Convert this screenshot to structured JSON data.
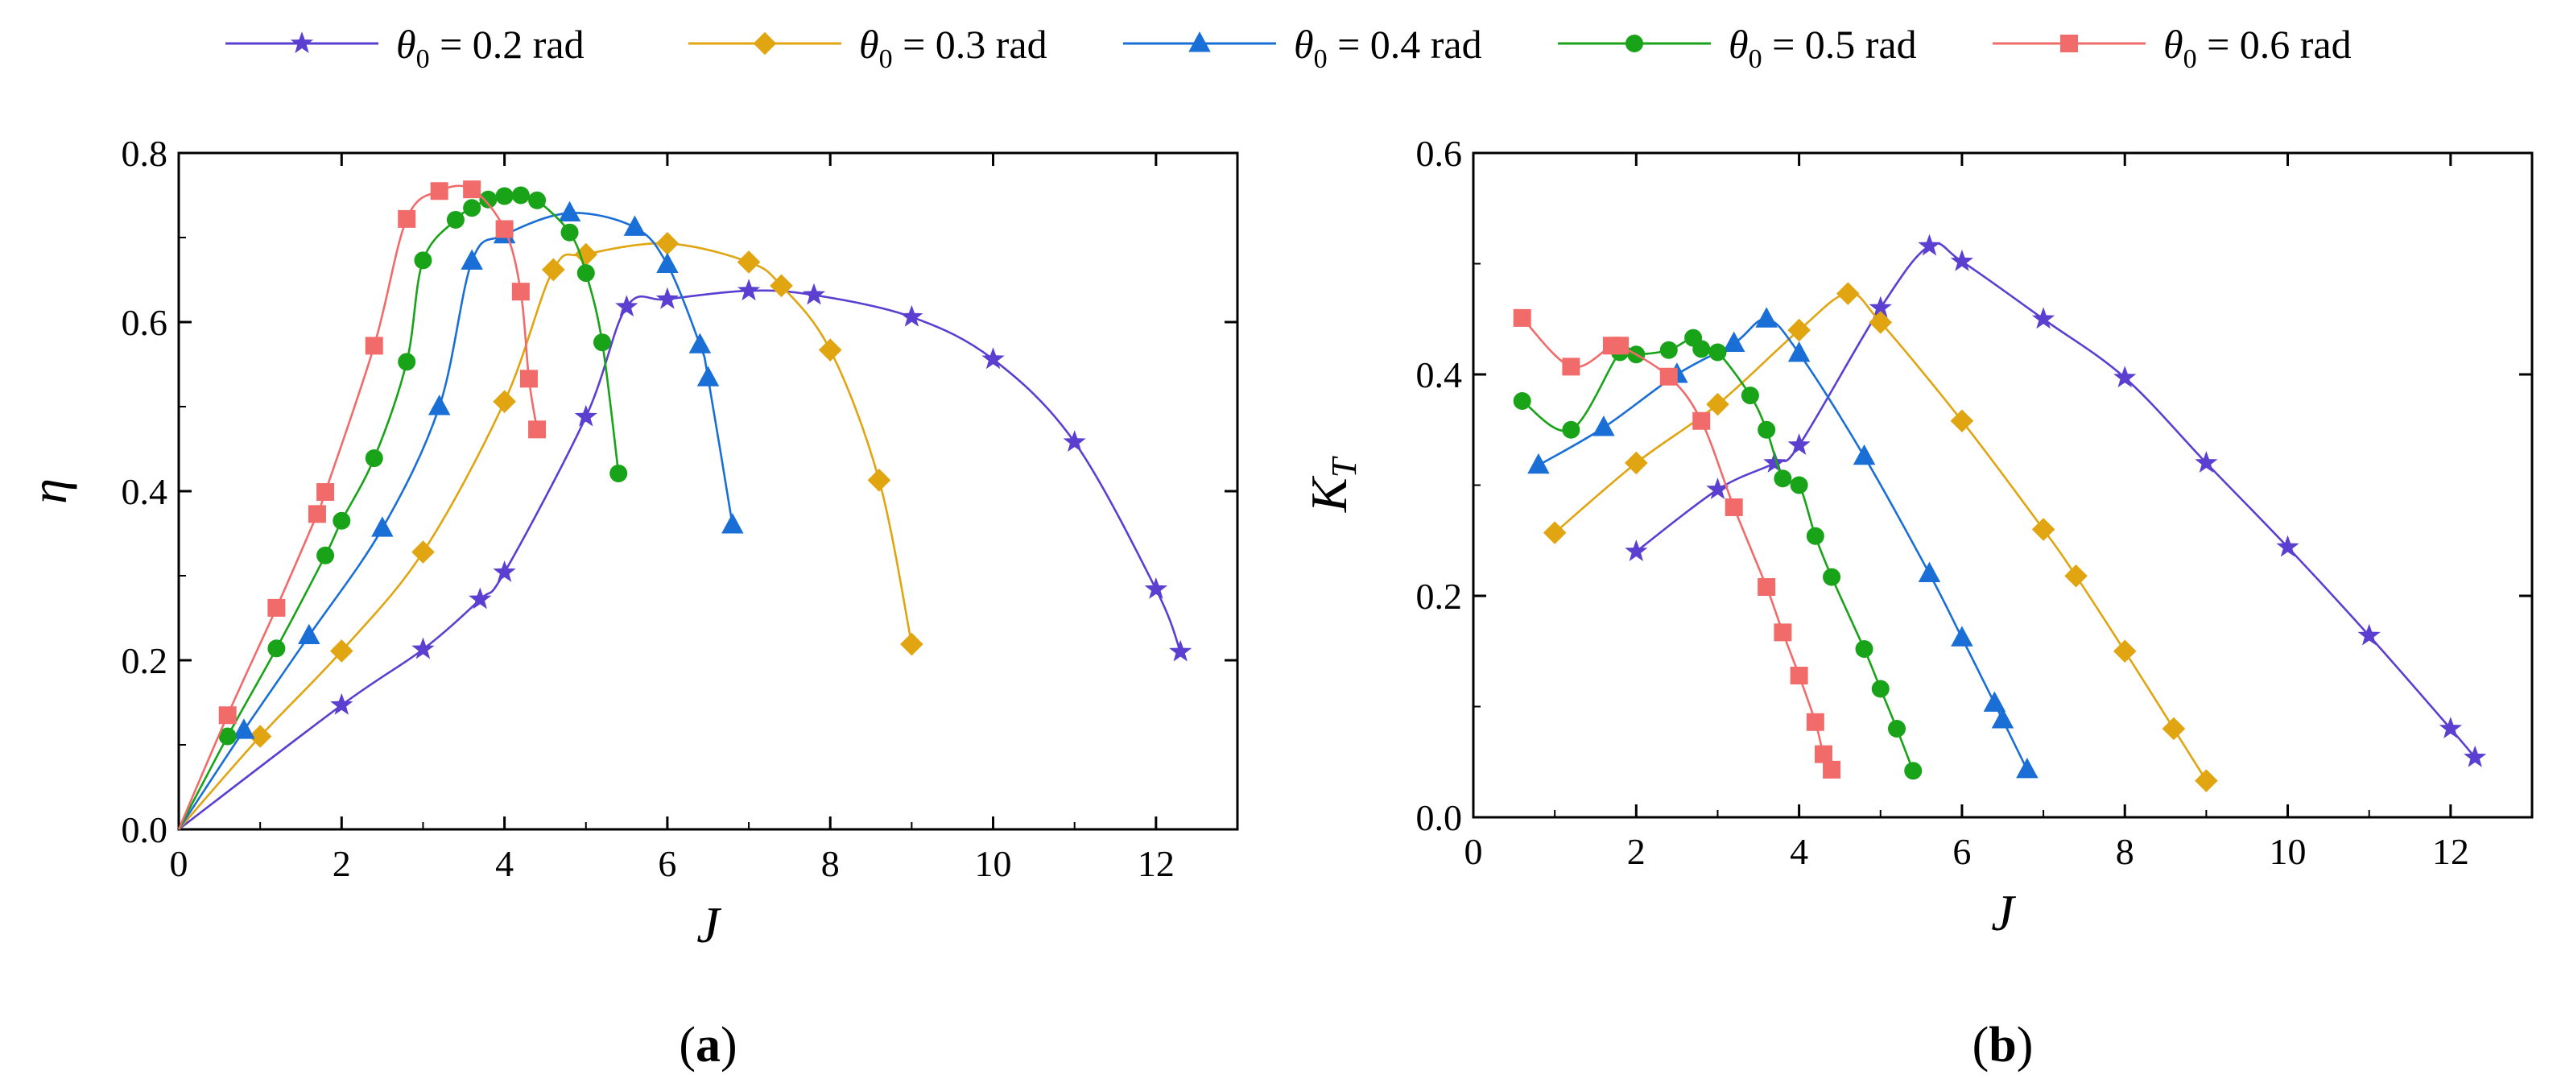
{
  "legend": [
    {
      "symbol": "θ",
      "subscript": "0",
      "text": " = 0.2 rad",
      "color": "#5b3fd1",
      "marker": "star"
    },
    {
      "symbol": "θ",
      "subscript": "0",
      "text": " = 0.3 rad",
      "color": "#e0a510",
      "marker": "diamond"
    },
    {
      "symbol": "θ",
      "subscript": "0",
      "text": " = 0.4 rad",
      "color": "#1a6fd6",
      "marker": "triangle"
    },
    {
      "symbol": "θ",
      "subscript": "0",
      "text": " = 0.5 rad",
      "color": "#18a318",
      "marker": "circle"
    },
    {
      "symbol": "θ",
      "subscript": "0",
      "text": " = 0.6 rad",
      "color": "#f26b6b",
      "marker": "square"
    }
  ],
  "chart_data": [
    {
      "type": "line",
      "panel_label": {
        "open": "(",
        "letter": "a",
        "close": ")"
      },
      "xlabel": "J",
      "ylabel": "η",
      "xlim": [
        0,
        13
      ],
      "ylim": [
        0,
        0.8
      ],
      "xticks": [
        0,
        2,
        4,
        6,
        8,
        10,
        12
      ],
      "yticks": [
        0.0,
        0.2,
        0.4,
        0.6,
        0.8
      ],
      "xtick_labels": [
        "0",
        "2",
        "4",
        "6",
        "8",
        "10",
        "12"
      ],
      "ytick_labels": [
        "0.0",
        "0.2",
        "0.4",
        "0.6",
        "0.8"
      ],
      "series": [
        {
          "name": "θ0 = 0.2 rad",
          "x": [
            0,
            2.0,
            3.0,
            3.7,
            4.0,
            5.0,
            5.5,
            6.0,
            7.0,
            7.8,
            9.0,
            10.0,
            11.0,
            12.0,
            12.3
          ],
          "y": [
            0,
            0.147,
            0.213,
            0.272,
            0.304,
            0.488,
            0.618,
            0.627,
            0.637,
            0.632,
            0.606,
            0.556,
            0.458,
            0.284,
            0.21
          ]
        },
        {
          "name": "θ0 = 0.3 rad",
          "x": [
            0,
            1.0,
            2.0,
            3.0,
            4.0,
            4.6,
            5.0,
            6.0,
            7.0,
            7.4,
            8.0,
            8.6,
            9.0
          ],
          "y": [
            0,
            0.11,
            0.211,
            0.328,
            0.506,
            0.662,
            0.68,
            0.693,
            0.671,
            0.643,
            0.567,
            0.413,
            0.219
          ]
        },
        {
          "name": "θ0 = 0.4 rad",
          "x": [
            0,
            0.8,
            1.6,
            2.5,
            3.2,
            3.6,
            4.0,
            4.8,
            5.6,
            6.0,
            6.4,
            6.5,
            6.8
          ],
          "y": [
            0,
            0.117,
            0.229,
            0.356,
            0.5,
            0.672,
            0.703,
            0.729,
            0.712,
            0.668,
            0.573,
            0.534,
            0.36
          ]
        },
        {
          "name": "θ0 = 0.5 rad",
          "x": [
            0,
            0.6,
            1.2,
            1.8,
            2.0,
            2.4,
            2.8,
            3.0,
            3.4,
            3.6,
            3.8,
            4.0,
            4.2,
            4.4,
            4.8,
            5.0,
            5.2,
            5.4
          ],
          "y": [
            0,
            0.11,
            0.214,
            0.324,
            0.365,
            0.439,
            0.553,
            0.673,
            0.721,
            0.735,
            0.745,
            0.749,
            0.75,
            0.744,
            0.706,
            0.658,
            0.576,
            0.421
          ]
        },
        {
          "name": "θ0 = 0.6 rad",
          "x": [
            0,
            0.6,
            1.2,
            1.7,
            1.8,
            2.4,
            2.8,
            3.2,
            3.6,
            4.0,
            4.2,
            4.3,
            4.4
          ],
          "y": [
            0,
            0.135,
            0.262,
            0.373,
            0.399,
            0.572,
            0.722,
            0.755,
            0.757,
            0.71,
            0.636,
            0.533,
            0.473
          ]
        }
      ]
    },
    {
      "type": "line",
      "panel_label": {
        "open": "(",
        "letter": "b",
        "close": ")"
      },
      "xlabel": "J",
      "ylabel": "K",
      "ylabel_subscript": "T",
      "xlim": [
        0,
        13
      ],
      "ylim": [
        0,
        0.6
      ],
      "xticks": [
        0,
        2,
        4,
        6,
        8,
        10,
        12
      ],
      "yticks": [
        0.0,
        0.2,
        0.4,
        0.6
      ],
      "xtick_labels": [
        "0",
        "2",
        "4",
        "6",
        "8",
        "10",
        "12"
      ],
      "ytick_labels": [
        "0.0",
        "0.2",
        "0.4",
        "0.6"
      ],
      "series": [
        {
          "name": "θ0 = 0.2 rad",
          "x": [
            2.0,
            3.0,
            3.7,
            4.0,
            5.0,
            5.6,
            6.0,
            7.0,
            8.0,
            9.0,
            10.0,
            11.0,
            12.0,
            12.3
          ],
          "y": [
            0.24,
            0.296,
            0.32,
            0.336,
            0.46,
            0.516,
            0.502,
            0.45,
            0.397,
            0.32,
            0.244,
            0.164,
            0.08,
            0.054
          ]
        },
        {
          "name": "θ0 = 0.3 rad",
          "x": [
            1.0,
            2.0,
            3.0,
            4.0,
            4.6,
            5.0,
            6.0,
            7.0,
            7.4,
            8.0,
            8.6,
            9.0
          ],
          "y": [
            0.257,
            0.32,
            0.373,
            0.44,
            0.473,
            0.447,
            0.358,
            0.26,
            0.218,
            0.15,
            0.08,
            0.033
          ]
        },
        {
          "name": "θ0 = 0.4 rad",
          "x": [
            0.8,
            1.6,
            2.5,
            3.2,
            3.6,
            4.0,
            4.8,
            5.6,
            6.0,
            6.4,
            6.5,
            6.8
          ],
          "y": [
            0.318,
            0.352,
            0.4,
            0.428,
            0.45,
            0.419,
            0.326,
            0.22,
            0.162,
            0.103,
            0.088,
            0.043
          ]
        },
        {
          "name": "θ0 = 0.5 rad",
          "x": [
            0.6,
            1.2,
            1.8,
            2.0,
            2.4,
            2.7,
            2.8,
            3.0,
            3.4,
            3.6,
            3.8,
            4.0,
            4.2,
            4.4,
            4.8,
            5.0,
            5.2,
            5.4
          ],
          "y": [
            0.376,
            0.35,
            0.42,
            0.418,
            0.422,
            0.433,
            0.423,
            0.42,
            0.381,
            0.35,
            0.306,
            0.3,
            0.254,
            0.217,
            0.152,
            0.116,
            0.08,
            0.042
          ]
        },
        {
          "name": "θ0 = 0.6 rad",
          "x": [
            0.6,
            1.2,
            1.7,
            1.8,
            2.4,
            2.8,
            3.2,
            3.6,
            3.8,
            4.0,
            4.2,
            4.3,
            4.4
          ],
          "y": [
            0.451,
            0.407,
            0.426,
            0.426,
            0.398,
            0.358,
            0.28,
            0.208,
            0.167,
            0.128,
            0.086,
            0.057,
            0.043
          ]
        }
      ]
    }
  ]
}
